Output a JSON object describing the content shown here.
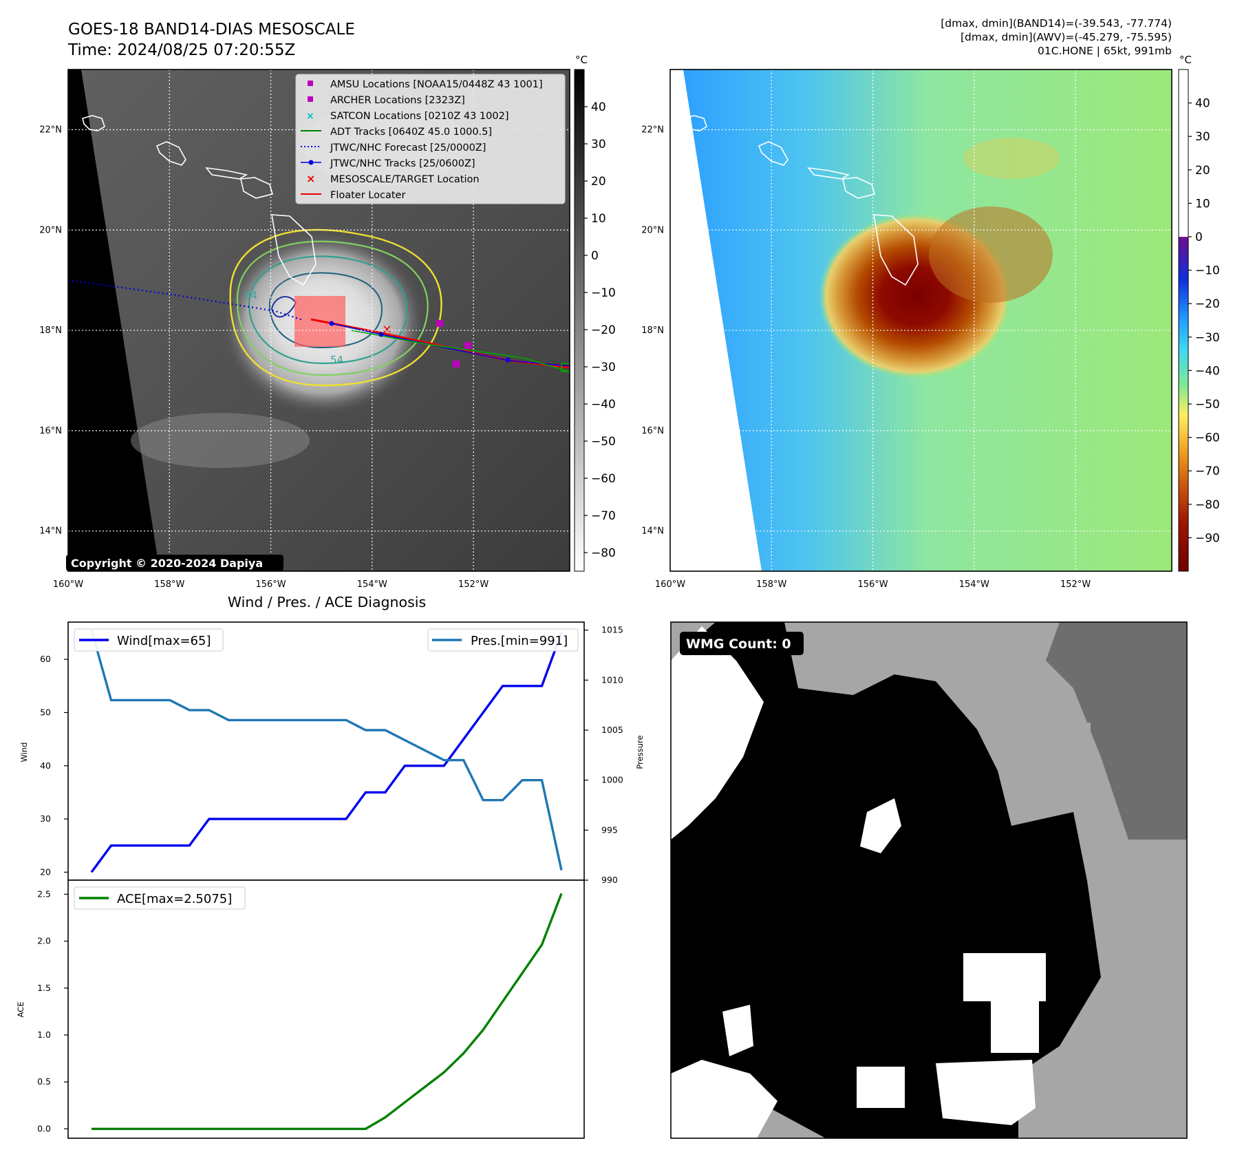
{
  "title": {
    "line1": "GOES-18 BAND14-DIAS MESOSCALE",
    "line2": "Time: 2024/08/25 07:20:55Z"
  },
  "info": {
    "line1": "[dmax, dmin](BAND14)=(-39.543, -77.774)",
    "line2": "[dmax, dmin](AWV)=(-45.279, -75.595)",
    "line3": "01C.HONE | 65kt, 991mb"
  },
  "copyright": "Copyright © 2020-2024 Dapiya",
  "colors": {
    "wind": "#0000ee",
    "pressure": "#1f77b4",
    "ace": "#008000",
    "forecast": "#0000dd",
    "floater": "#ee0000",
    "amsu": "#c000c0",
    "satcon": "#00bfbf",
    "adt": "#008000"
  },
  "map": {
    "lon_ticks": [
      "160°W",
      "158°W",
      "156°W",
      "154°W",
      "152°W"
    ],
    "lat_ticks": [
      "22°N",
      "20°N",
      "18°N",
      "16°N",
      "14°N"
    ],
    "lon_range": [
      -160,
      -150.1
    ],
    "lat_range": [
      13.2,
      23.2
    ],
    "contour_labels": [
      "64",
      "64",
      "54"
    ]
  },
  "ir_colorbar": {
    "unit": "°C",
    "ticks": [
      "40",
      "30",
      "20",
      "10",
      "0",
      "−10",
      "−20",
      "−30",
      "−40",
      "−50",
      "−60",
      "−70",
      "−80"
    ],
    "range": [
      -85,
      50
    ]
  },
  "color_colorbar": {
    "unit": "°C",
    "ticks": [
      "40",
      "30",
      "20",
      "10",
      "0",
      "−10",
      "−20",
      "−30",
      "−40",
      "−50",
      "−60",
      "−70",
      "−80",
      "−90"
    ],
    "range": [
      -100,
      50
    ]
  },
  "legend": {
    "items": [
      {
        "label": "AMSU Locations [NOAA15/0448Z 43 1001]",
        "marker": "square-magenta"
      },
      {
        "label": "ARCHER Locations [2323Z]",
        "marker": "square-magenta"
      },
      {
        "label": "SATCON Locations [0210Z 43 1002]",
        "marker": "x-cyan"
      },
      {
        "label": "ADT Tracks [0640Z 45.0 1000.5]",
        "marker": "line-green"
      },
      {
        "label": "JTWC/NHC Forecast [25/0000Z]",
        "marker": "dotted-blue"
      },
      {
        "label": "JTWC/NHC Tracks [25/0600Z]",
        "marker": "line-dot-blue"
      },
      {
        "label": "MESOSCALE/TARGET Location",
        "marker": "x-red"
      },
      {
        "label": "Floater Locater",
        "marker": "line-red"
      }
    ]
  },
  "wmg": {
    "label": "WMG Count: 0"
  },
  "chart_data": [
    {
      "type": "line",
      "title": "Wind / Pres. / ACE Diagnosis",
      "ylabel": "Wind",
      "y2label": "Pressure",
      "ylim": [
        18.5,
        67
      ],
      "y2lim": [
        990,
        1015.8
      ],
      "yticks": [
        20,
        30,
        40,
        50,
        60
      ],
      "y2ticks": [
        990,
        995,
        1000,
        1005,
        1010,
        1015
      ],
      "series": [
        {
          "name": "Wind[max=65]",
          "axis": "left",
          "values": [
            20,
            25,
            25,
            25,
            25,
            25,
            30,
            30,
            30,
            30,
            30,
            30,
            30,
            30,
            35,
            35,
            40,
            40,
            40,
            45,
            50,
            55,
            55,
            55,
            65
          ]
        },
        {
          "name": "Pres.[min=991]",
          "axis": "right",
          "values": [
            1015,
            1008,
            1008,
            1008,
            1008,
            1007,
            1007,
            1006,
            1006,
            1006,
            1006,
            1006,
            1006,
            1006,
            1005,
            1005,
            1004,
            1003,
            1002,
            1002,
            998,
            998,
            1000,
            1000,
            991
          ]
        }
      ]
    },
    {
      "type": "line",
      "ylabel": "ACE",
      "ylim": [
        -0.1,
        2.65
      ],
      "yticks": [
        "0.0",
        "0.5",
        "1.0",
        "1.5",
        "2.0",
        "2.5"
      ],
      "series": [
        {
          "name": "ACE[max=2.5075]",
          "values": [
            0,
            0,
            0,
            0,
            0,
            0,
            0,
            0,
            0,
            0,
            0,
            0,
            0,
            0,
            0,
            0.1225,
            0.2825,
            0.4425,
            0.6025,
            0.805,
            1.055,
            1.3575,
            1.66,
            1.9625,
            2.5075
          ]
        }
      ]
    }
  ]
}
